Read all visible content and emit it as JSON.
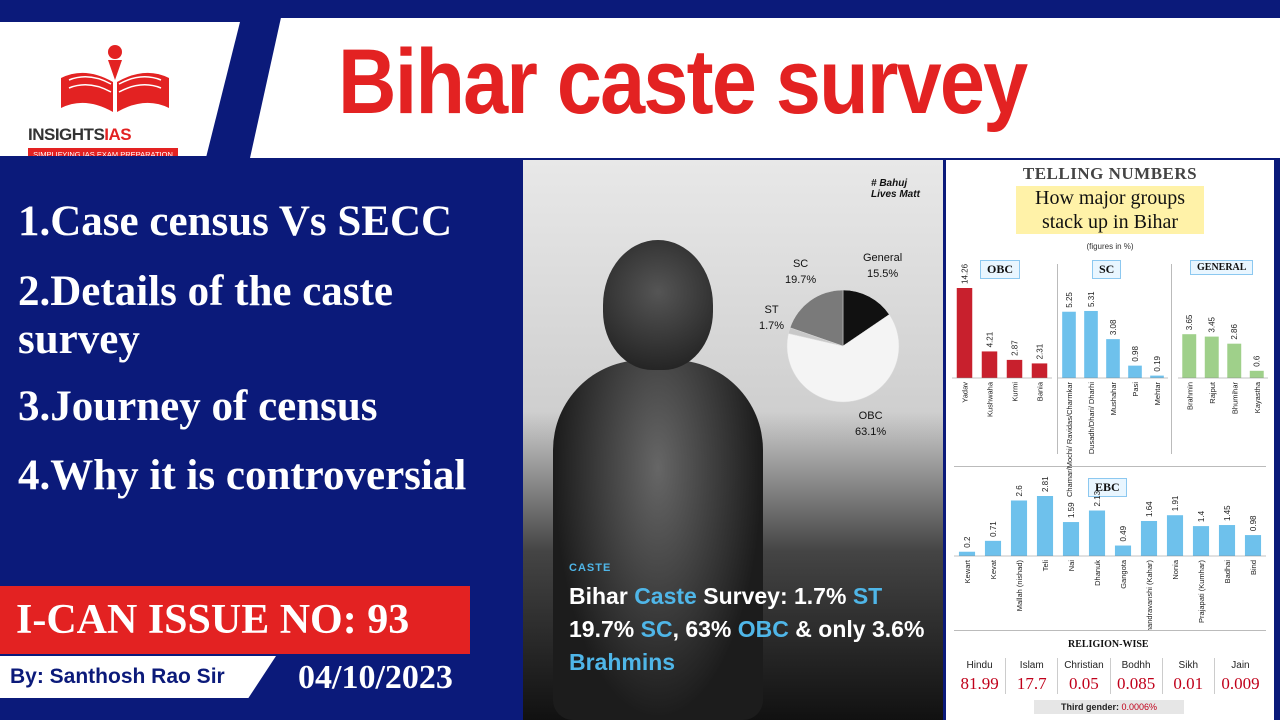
{
  "header": {
    "title": "Bihar caste survey",
    "logo_brand_a": "INSIGHTS",
    "logo_brand_b": "IAS",
    "logo_tagline": "SIMPLIFYING IAS EXAM PREPARATION"
  },
  "topics": [
    "1.Case census Vs SECC",
    "2.Details of the caste survey",
    "3.Journey of census",
    "4.Why it is controversial"
  ],
  "issue": "I-CAN ISSUE NO: 93",
  "author": "By: Santhosh Rao Sir",
  "date": "04/10/2023",
  "photo": {
    "watermark": "# Bahuj Lives Matt",
    "tag": "CASTE",
    "headline_parts": [
      "Bihar ",
      "Caste",
      " Survey: 1.7% ",
      "ST",
      " 19.7% ",
      "SC",
      ", 63% ",
      "OBC",
      " & only 3.6% ",
      "Brahmins"
    ],
    "pie_labels": {
      "sc": [
        "SC",
        "19.7%"
      ],
      "general": [
        "General",
        "15.5%"
      ],
      "st": [
        "ST",
        "1.7%"
      ],
      "obc": [
        "OBC",
        "63.1%"
      ]
    }
  },
  "infographic": {
    "heading": "TELLING NUMBERS",
    "subheading": "How major groups stack up in Bihar",
    "note": "(figures in %)",
    "religion_title": "RELIGION-WISE",
    "third_gender_label": "Third gender:",
    "third_gender_value": "0.0006%"
  },
  "chart_data": [
    {
      "type": "pie",
      "categories": [
        "OBC",
        "SC",
        "General",
        "ST"
      ],
      "values": [
        63.1,
        19.7,
        15.5,
        1.7
      ]
    },
    {
      "type": "bar",
      "title": "OBC",
      "categories": [
        "Yadav",
        "Kushwaha",
        "Kurmi",
        "Bania"
      ],
      "values": [
        14.26,
        4.21,
        2.87,
        2.31
      ],
      "color": "#c8202d"
    },
    {
      "type": "bar",
      "title": "SC",
      "categories": [
        "Chamar/Mochi/ Ravidas/Charmkar",
        "Dusadh/Dhari/ Dharhi",
        "Mushahar",
        "Pasi",
        "Mehtar"
      ],
      "values": [
        5.25,
        5.31,
        3.08,
        0.98,
        0.19
      ],
      "color": "#6ec1ec"
    },
    {
      "type": "bar",
      "title": "GENERAL",
      "categories": [
        "Brahmin",
        "Rajput",
        "Bhumihar",
        "Kayastha"
      ],
      "values": [
        3.65,
        3.45,
        2.86,
        0.6
      ],
      "color": "#9fd08a"
    },
    {
      "type": "bar",
      "title": "EBC",
      "categories": [
        "Kewart",
        "Kevat",
        "Mallah (nishad)",
        "Teli",
        "Nai",
        "Dhanuk",
        "Gangota",
        "Chandravanshi (Kahar)",
        "Nonia",
        "Prajapati (Kumhar)",
        "Badhai",
        "Bind"
      ],
      "values": [
        0.2,
        0.71,
        2.6,
        2.81,
        1.59,
        2.13,
        0.49,
        1.64,
        1.91,
        1.4,
        1.45,
        0.98
      ],
      "color": "#6ec1ec"
    },
    {
      "type": "table",
      "title": "RELIGION-WISE",
      "categories": [
        "Hindu",
        "Islam",
        "Christian",
        "Bodhh",
        "Sikh",
        "Jain"
      ],
      "values": [
        81.99,
        17.7,
        0.05,
        0.085,
        0.01,
        0.009
      ],
      "value_labels": [
        "81.99",
        "17.7",
        "0.05",
        "0.085",
        "0.01",
        "0.009"
      ]
    }
  ]
}
